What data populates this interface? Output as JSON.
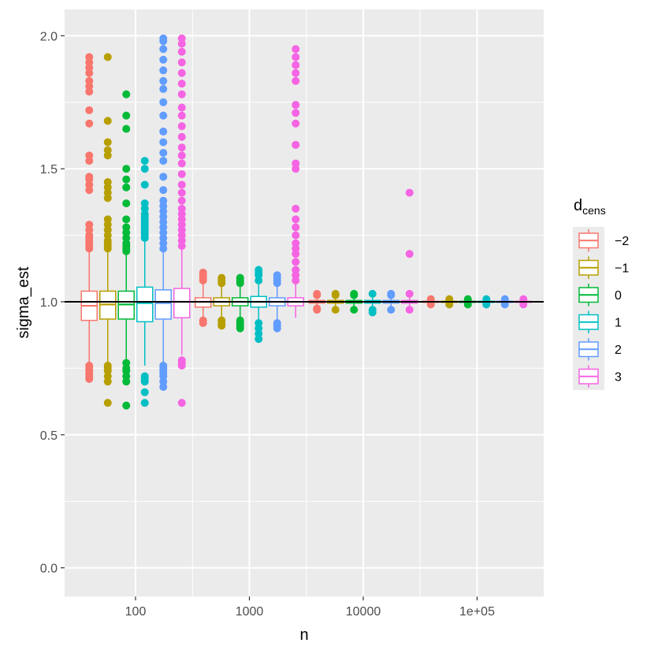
{
  "chart_data": {
    "type": "boxplot",
    "xlabel": "n",
    "ylabel": "sigma_est",
    "x_scale": "log10",
    "x_ticks": [
      {
        "value": 100,
        "label": "100"
      },
      {
        "value": 1000,
        "label": "1000"
      },
      {
        "value": 10000,
        "label": "10000"
      },
      {
        "value": 100000,
        "label": "1e+05"
      }
    ],
    "y_ticks": [
      {
        "value": 0.0,
        "label": "0.0"
      },
      {
        "value": 0.5,
        "label": "0.5"
      },
      {
        "value": 1.0,
        "label": "1.0"
      },
      {
        "value": 1.5,
        "label": "1.5"
      },
      {
        "value": 2.0,
        "label": "2.0"
      }
    ],
    "ylim": [
      -0.1,
      2.1
    ],
    "hline": 1.0,
    "grid": true,
    "legend": {
      "position": "right",
      "title_main": "d",
      "title_sub": "cens",
      "entries": [
        {
          "label": "−2",
          "color": "#F8766D"
        },
        {
          "label": "−1",
          "color": "#B79F00"
        },
        {
          "label": "0",
          "color": "#00BA38"
        },
        {
          "label": "1",
          "color": "#00BFC4"
        },
        {
          "label": "2",
          "color": "#619CFF"
        },
        {
          "label": "3",
          "color": "#F564E3"
        }
      ]
    },
    "groups": [
      {
        "n": 100,
        "boxes": [
          {
            "dcens": "−2",
            "q1": 0.93,
            "median": 0.985,
            "q3": 1.04,
            "whisker_low": 0.77,
            "whisker_high": 1.19,
            "outliers": [
              0.71,
              0.72,
              0.73,
              0.74,
              0.75,
              0.76,
              1.2,
              1.21,
              1.22,
              1.23,
              1.24,
              1.25,
              1.27,
              1.29,
              1.42,
              1.44,
              1.46,
              1.47,
              1.53,
              1.55,
              1.67,
              1.72,
              1.79,
              1.81,
              1.83,
              1.86,
              1.88,
              1.9,
              1.92
            ]
          },
          {
            "dcens": "−1",
            "q1": 0.935,
            "median": 0.99,
            "q3": 1.04,
            "whisker_low": 0.77,
            "whisker_high": 1.19,
            "outliers": [
              0.62,
              0.7,
              0.72,
              0.74,
              0.75,
              0.76,
              1.2,
              1.21,
              1.22,
              1.23,
              1.25,
              1.27,
              1.29,
              1.31,
              1.39,
              1.41,
              1.43,
              1.45,
              1.55,
              1.57,
              1.6,
              1.68,
              1.92
            ]
          },
          {
            "dcens": "0",
            "q1": 0.935,
            "median": 0.99,
            "q3": 1.04,
            "whisker_low": 0.78,
            "whisker_high": 1.18,
            "outliers": [
              0.61,
              0.7,
              0.72,
              0.74,
              0.75,
              0.77,
              1.19,
              1.2,
              1.21,
              1.22,
              1.24,
              1.26,
              1.28,
              1.31,
              1.37,
              1.43,
              1.46,
              1.5,
              1.65,
              1.7,
              1.78
            ]
          },
          {
            "dcens": "1",
            "q1": 0.925,
            "median": 0.995,
            "q3": 1.055,
            "whisker_low": 0.76,
            "whisker_high": 1.23,
            "outliers": [
              0.62,
              0.66,
              0.7,
              0.71,
              0.72,
              1.24,
              1.25,
              1.26,
              1.27,
              1.28,
              1.29,
              1.3,
              1.31,
              1.32,
              1.33,
              1.35,
              1.37,
              1.44,
              1.5,
              1.53
            ]
          },
          {
            "dcens": "2",
            "q1": 0.935,
            "median": 0.995,
            "q3": 1.045,
            "whisker_low": 0.77,
            "whisker_high": 1.19,
            "outliers": [
              0.68,
              0.7,
              0.72,
              0.73,
              0.74,
              0.75,
              0.76,
              1.2,
              1.22,
              1.24,
              1.26,
              1.28,
              1.3,
              1.32,
              1.34,
              1.36,
              1.38,
              1.42,
              1.47,
              1.53,
              1.56,
              1.6,
              1.64,
              1.7,
              1.75,
              1.8,
              1.83,
              1.87,
              1.91,
              1.95,
              1.98,
              1.99
            ]
          },
          {
            "dcens": "3",
            "q1": 0.94,
            "median": 1.0,
            "q3": 1.05,
            "whisker_low": 0.8,
            "whisker_high": 1.2,
            "outliers": [
              0.62,
              0.76,
              0.77,
              0.78,
              1.21,
              1.23,
              1.25,
              1.27,
              1.29,
              1.31,
              1.33,
              1.35,
              1.38,
              1.41,
              1.44,
              1.48,
              1.52,
              1.55,
              1.58,
              1.62,
              1.66,
              1.7,
              1.73,
              1.78,
              1.82,
              1.86,
              1.9,
              1.94,
              1.97,
              1.99
            ]
          }
        ]
      },
      {
        "n": 1000,
        "boxes": [
          {
            "dcens": "−2",
            "q1": 0.98,
            "median": 1.0,
            "q3": 1.015,
            "whisker_low": 0.93,
            "whisker_high": 1.07,
            "outliers": [
              0.92,
              0.93,
              1.08,
              1.09,
              1.1,
              1.11
            ]
          },
          {
            "dcens": "−1",
            "q1": 0.985,
            "median": 1.0,
            "q3": 1.015,
            "whisker_low": 0.93,
            "whisker_high": 1.06,
            "outliers": [
              0.91,
              0.92,
              0.93,
              1.07,
              1.08,
              1.09
            ]
          },
          {
            "dcens": "0",
            "q1": 0.985,
            "median": 1.0,
            "q3": 1.015,
            "whisker_low": 0.94,
            "whisker_high": 1.06,
            "outliers": [
              0.9,
              0.91,
              0.92,
              0.93,
              1.07,
              1.08,
              1.09
            ]
          },
          {
            "dcens": "1",
            "q1": 0.98,
            "median": 1.0,
            "q3": 1.02,
            "whisker_low": 0.93,
            "whisker_high": 1.07,
            "outliers": [
              0.86,
              0.88,
              0.9,
              0.92,
              1.08,
              1.1,
              1.11,
              1.12
            ]
          },
          {
            "dcens": "2",
            "q1": 0.985,
            "median": 1.0,
            "q3": 1.015,
            "whisker_low": 0.93,
            "whisker_high": 1.06,
            "outliers": [
              0.9,
              0.91,
              0.92,
              1.07,
              1.08,
              1.09,
              1.1
            ]
          },
          {
            "dcens": "3",
            "q1": 0.985,
            "median": 1.0,
            "q3": 1.015,
            "whisker_low": 0.94,
            "whisker_high": 1.07,
            "outliers": [
              1.08,
              1.1,
              1.12,
              1.15,
              1.18,
              1.2,
              1.22,
              1.25,
              1.28,
              1.31,
              1.35,
              1.5,
              1.52,
              1.59,
              1.67,
              1.71,
              1.74,
              1.83,
              1.86,
              1.89,
              1.92,
              1.95
            ]
          }
        ]
      },
      {
        "n": 10000,
        "boxes": [
          {
            "dcens": "−2",
            "q1": 0.995,
            "median": 1.0,
            "q3": 1.005,
            "whisker_low": 0.98,
            "whisker_high": 1.02,
            "outliers": [
              0.97,
              0.975,
              1.025,
              1.03
            ]
          },
          {
            "dcens": "−1",
            "q1": 0.995,
            "median": 1.0,
            "q3": 1.005,
            "whisker_low": 0.98,
            "whisker_high": 1.02,
            "outliers": [
              0.97,
              1.025,
              1.03
            ]
          },
          {
            "dcens": "0",
            "q1": 0.995,
            "median": 1.0,
            "q3": 1.005,
            "whisker_low": 0.98,
            "whisker_high": 1.02,
            "outliers": [
              0.97,
              1.025,
              1.03
            ]
          },
          {
            "dcens": "1",
            "q1": 0.995,
            "median": 1.0,
            "q3": 1.005,
            "whisker_low": 0.975,
            "whisker_high": 1.02,
            "outliers": [
              0.96,
              0.97,
              1.03
            ]
          },
          {
            "dcens": "2",
            "q1": 0.995,
            "median": 1.0,
            "q3": 1.005,
            "whisker_low": 0.98,
            "whisker_high": 1.02,
            "outliers": [
              0.97,
              1.025,
              1.03
            ]
          },
          {
            "dcens": "3",
            "q1": 0.995,
            "median": 1.0,
            "q3": 1.005,
            "whisker_low": 0.98,
            "whisker_high": 1.02,
            "outliers": [
              0.97,
              1.03,
              1.18,
              1.41
            ]
          }
        ]
      },
      {
        "n": 100000,
        "boxes": [
          {
            "dcens": "−2",
            "q1": 0.998,
            "median": 1.0,
            "q3": 1.002,
            "whisker_low": 0.993,
            "whisker_high": 1.007,
            "outliers": [
              0.99,
              1.01
            ]
          },
          {
            "dcens": "−1",
            "q1": 0.998,
            "median": 1.0,
            "q3": 1.002,
            "whisker_low": 0.993,
            "whisker_high": 1.007,
            "outliers": [
              0.99,
              1.01
            ]
          },
          {
            "dcens": "0",
            "q1": 0.998,
            "median": 1.0,
            "q3": 1.002,
            "whisker_low": 0.993,
            "whisker_high": 1.007,
            "outliers": [
              0.99,
              1.01
            ]
          },
          {
            "dcens": "1",
            "q1": 0.998,
            "median": 1.0,
            "q3": 1.002,
            "whisker_low": 0.993,
            "whisker_high": 1.007,
            "outliers": [
              0.99,
              1.01
            ]
          },
          {
            "dcens": "2",
            "q1": 0.998,
            "median": 1.0,
            "q3": 1.002,
            "whisker_low": 0.993,
            "whisker_high": 1.007,
            "outliers": [
              0.99,
              1.01
            ]
          },
          {
            "dcens": "3",
            "q1": 0.998,
            "median": 1.0,
            "q3": 1.002,
            "whisker_low": 0.993,
            "whisker_high": 1.007,
            "outliers": [
              0.99,
              1.01
            ]
          }
        ]
      }
    ]
  }
}
